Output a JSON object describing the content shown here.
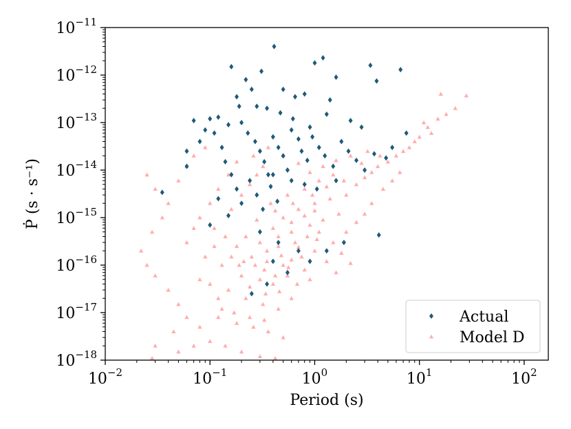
{
  "chart_data": {
    "type": "scatter",
    "title": "",
    "xlabel": "Period (s)",
    "ylabel": "Ṗ (s · s⁻¹)",
    "xscale": "log",
    "yscale": "log",
    "xlim": [
      0.01,
      170
    ],
    "ylim": [
      1e-18,
      1e-11
    ],
    "x_ticks": [
      {
        "value": 0.01,
        "base": "10",
        "exp": "−2"
      },
      {
        "value": 0.1,
        "base": "10",
        "exp": "−1"
      },
      {
        "value": 1,
        "base": "10",
        "exp": "0"
      },
      {
        "value": 10,
        "base": "10",
        "exp": "1"
      },
      {
        "value": 100,
        "base": "10",
        "exp": "2"
      }
    ],
    "y_ticks": [
      {
        "value": 1e-18,
        "base": "10",
        "exp": "−18"
      },
      {
        "value": 1e-17,
        "base": "10",
        "exp": "−17"
      },
      {
        "value": 1e-16,
        "base": "10",
        "exp": "−16"
      },
      {
        "value": 1e-15,
        "base": "10",
        "exp": "−15"
      },
      {
        "value": 1e-14,
        "base": "10",
        "exp": "−14"
      },
      {
        "value": 1e-13,
        "base": "10",
        "exp": "−13"
      },
      {
        "value": 1e-12,
        "base": "10",
        "exp": "−12"
      },
      {
        "value": 1e-11,
        "base": "10",
        "exp": "−11"
      }
    ],
    "legend_position": "lower-right",
    "series": [
      {
        "name": "Actual",
        "marker": "diamond",
        "color": "#1f5a78",
        "points": [
          [
            0.41,
            4e-12
          ],
          [
            1.2,
            2.3e-12
          ],
          [
            3.4,
            1.6e-12
          ],
          [
            6.6,
            1.3e-12
          ],
          [
            0.16,
            1.5e-12
          ],
          [
            1.0,
            1.8e-12
          ],
          [
            1.6,
            9e-13
          ],
          [
            0.31,
            1.2e-12
          ],
          [
            3.9,
            7.5e-13
          ],
          [
            0.22,
            8e-13
          ],
          [
            0.5,
            5e-13
          ],
          [
            0.8,
            4e-13
          ],
          [
            1.4,
            3e-13
          ],
          [
            0.25,
            5e-13
          ],
          [
            0.65,
            3.5e-13
          ],
          [
            0.18,
            3.5e-13
          ],
          [
            0.12,
            1.3e-13
          ],
          [
            0.1,
            1.2e-13
          ],
          [
            0.07,
            1.1e-13
          ],
          [
            0.09,
            7e-14
          ],
          [
            0.06,
            2.5e-14
          ],
          [
            0.06,
            1.2e-14
          ],
          [
            0.08,
            4e-14
          ],
          [
            0.11,
            6e-14
          ],
          [
            0.13,
            3e-14
          ],
          [
            0.14,
            1.5e-14
          ],
          [
            0.16,
            8e-15
          ],
          [
            0.2,
            1e-13
          ],
          [
            0.23,
            6e-14
          ],
          [
            0.27,
            4e-14
          ],
          [
            0.3,
            2.5e-14
          ],
          [
            0.33,
            1.5e-14
          ],
          [
            0.36,
            8e-15
          ],
          [
            0.4,
            5e-14
          ],
          [
            0.45,
            3e-14
          ],
          [
            0.5,
            2e-14
          ],
          [
            0.55,
            1e-14
          ],
          [
            0.6,
            7e-14
          ],
          [
            0.7,
            4.5e-14
          ],
          [
            0.75,
            2.5e-14
          ],
          [
            0.85,
            1.6e-14
          ],
          [
            0.95,
            5e-14
          ],
          [
            1.1,
            3e-14
          ],
          [
            1.25,
            2e-14
          ],
          [
            1.5,
            1.2e-14
          ],
          [
            1.8,
            4e-14
          ],
          [
            2.1,
            2.5e-14
          ],
          [
            2.5,
            1.6e-14
          ],
          [
            3.0,
            1e-14
          ],
          [
            0.035,
            3.4e-15
          ],
          [
            0.1,
            7e-16
          ],
          [
            0.15,
            1.1e-15
          ],
          [
            0.12,
            2.5e-15
          ],
          [
            0.18,
            4e-15
          ],
          [
            0.2,
            2e-15
          ],
          [
            0.24,
            6e-15
          ],
          [
            0.28,
            3e-15
          ],
          [
            0.32,
            1.5e-15
          ],
          [
            0.38,
            4.5e-15
          ],
          [
            0.44,
            2.2e-15
          ],
          [
            4.1,
            4.3e-16
          ],
          [
            7.5,
            6e-14
          ],
          [
            5.5,
            3e-14
          ],
          [
            4.8,
            1.8e-14
          ],
          [
            3.7,
            2.2e-14
          ],
          [
            0.9,
            8e-14
          ],
          [
            0.62,
            1.2e-13
          ],
          [
            0.35,
            2e-13
          ],
          [
            0.28,
            2.2e-13
          ],
          [
            0.47,
            1.6e-13
          ],
          [
            1.3,
            1.5e-13
          ],
          [
            2.2,
            1.1e-13
          ],
          [
            2.8,
            8e-14
          ],
          [
            0.19,
            2.2e-13
          ],
          [
            0.15,
            9e-14
          ],
          [
            0.4,
            8e-15
          ],
          [
            0.6,
            6e-15
          ],
          [
            0.8,
            5e-15
          ],
          [
            1.05,
            4e-15
          ],
          [
            1.6,
            6e-15
          ],
          [
            0.3,
            5e-16
          ],
          [
            0.45,
            3e-16
          ],
          [
            0.7,
            2e-16
          ],
          [
            0.9,
            1.2e-16
          ],
          [
            0.55,
            7e-17
          ],
          [
            0.35,
            4e-17
          ],
          [
            0.25,
            2.5e-17
          ],
          [
            1.3,
            2e-16
          ],
          [
            1.9,
            3e-16
          ],
          [
            0.4,
            1.2e-16
          ]
        ]
      },
      {
        "name": "Model D",
        "marker": "triangle",
        "color": "#ffadad",
        "points": [
          [
            0.5,
            1e-15
          ],
          [
            0.7,
            1.5e-15
          ],
          [
            1.0,
            2e-15
          ],
          [
            1.4,
            2.5e-15
          ],
          [
            2.0,
            3e-15
          ],
          [
            0.4,
            6e-16
          ],
          [
            0.6,
            5e-16
          ],
          [
            0.9,
            7e-16
          ],
          [
            1.2,
            9e-16
          ],
          [
            1.7,
            1.2e-15
          ],
          [
            0.3,
            3e-16
          ],
          [
            0.45,
            2.5e-16
          ],
          [
            0.65,
            3e-16
          ],
          [
            0.85,
            4e-16
          ],
          [
            1.1,
            5e-16
          ],
          [
            0.25,
            1.5e-16
          ],
          [
            0.35,
            1.2e-16
          ],
          [
            0.5,
            1e-16
          ],
          [
            0.75,
            1.5e-16
          ],
          [
            1.0,
            2e-16
          ],
          [
            0.2,
            6e-17
          ],
          [
            0.3,
            5e-17
          ],
          [
            0.4,
            4e-17
          ],
          [
            0.55,
            6e-17
          ],
          [
            0.8,
            8e-17
          ],
          [
            0.15,
            3e-17
          ],
          [
            0.22,
            2e-17
          ],
          [
            0.32,
            1.5e-17
          ],
          [
            0.45,
            1.2e-17
          ],
          [
            0.6,
            2e-17
          ],
          [
            0.12,
            8e-18
          ],
          [
            0.18,
            6e-18
          ],
          [
            0.26,
            5e-18
          ],
          [
            0.36,
            4e-18
          ],
          [
            0.5,
            3e-18
          ],
          [
            0.1,
            2.5e-18
          ],
          [
            0.14,
            2e-18
          ],
          [
            0.2,
            1.5e-18
          ],
          [
            0.3,
            1.2e-18
          ],
          [
            0.42,
            1.1e-18
          ],
          [
            2.5,
            5e-15
          ],
          [
            3.0,
            7e-15
          ],
          [
            3.5,
            9e-15
          ],
          [
            4.0,
            1.2e-14
          ],
          [
            5.0,
            1.5e-14
          ],
          [
            6.0,
            2e-14
          ],
          [
            7.0,
            2.5e-14
          ],
          [
            8.0,
            3e-14
          ],
          [
            9.0,
            4e-14
          ],
          [
            10.0,
            5e-14
          ],
          [
            12.0,
            8e-14
          ],
          [
            15.0,
            1.2e-13
          ],
          [
            18.0,
            1.5e-13
          ],
          [
            28.0,
            3.7e-13
          ],
          [
            16.0,
            4e-13
          ],
          [
            22.0,
            2e-13
          ],
          [
            11.0,
            1e-13
          ],
          [
            13.0,
            6e-14
          ],
          [
            0.025,
            8e-15
          ],
          [
            0.03,
            4e-15
          ],
          [
            0.04,
            2e-15
          ],
          [
            0.035,
            1e-15
          ],
          [
            0.028,
            5e-16
          ],
          [
            0.022,
            2e-16
          ],
          [
            0.025,
            1e-16
          ],
          [
            0.03,
            6e-17
          ],
          [
            0.04,
            3e-17
          ],
          [
            0.05,
            1.5e-17
          ],
          [
            0.06,
            8e-18
          ],
          [
            0.045,
            4e-18
          ],
          [
            0.03,
            2e-18
          ],
          [
            0.028,
            1.1e-18
          ],
          [
            0.05,
            1.5e-18
          ],
          [
            0.07,
            2e-18
          ],
          [
            0.08,
            5e-18
          ],
          [
            0.06,
            3e-16
          ],
          [
            0.07,
            6e-16
          ],
          [
            0.08,
            1e-15
          ],
          [
            0.1,
            2e-15
          ],
          [
            0.12,
            4e-15
          ],
          [
            0.15,
            8e-15
          ],
          [
            0.18,
            1.5e-14
          ],
          [
            0.05,
            6e-15
          ],
          [
            0.06,
            1.2e-14
          ],
          [
            0.07,
            2e-14
          ],
          [
            0.09,
            3e-14
          ],
          [
            0.11,
            6e-16
          ],
          [
            0.14,
            4e-16
          ],
          [
            0.18,
            2.5e-16
          ],
          [
            0.22,
            4e-16
          ],
          [
            1.5,
            3e-16
          ],
          [
            2.0,
            5e-16
          ],
          [
            2.5,
            8e-16
          ],
          [
            3.0,
            1.2e-15
          ],
          [
            1.8,
            1.8e-16
          ],
          [
            1.3,
            1.2e-16
          ],
          [
            1.6,
            7e-17
          ],
          [
            2.2,
            1.1e-16
          ],
          [
            3.5,
            2e-15
          ],
          [
            4.5,
            4e-15
          ],
          [
            5.5,
            6e-15
          ],
          [
            6.5,
            9e-15
          ],
          [
            0.38,
            2e-15
          ],
          [
            0.55,
            3e-15
          ],
          [
            0.8,
            4e-15
          ],
          [
            1.1,
            6e-15
          ],
          [
            1.5,
            8e-15
          ],
          [
            0.28,
            9e-16
          ],
          [
            0.42,
            1.4e-15
          ],
          [
            0.62,
            2e-15
          ],
          [
            0.95,
            3e-15
          ],
          [
            1.3,
            4.5e-15
          ],
          [
            1.9,
            6e-15
          ],
          [
            0.33,
            8e-17
          ],
          [
            0.48,
            1.6e-16
          ],
          [
            0.7,
            2.4e-16
          ],
          [
            1.05,
            3.5e-16
          ],
          [
            0.24,
            3.5e-17
          ],
          [
            0.34,
            2.5e-17
          ],
          [
            0.46,
            2.8e-17
          ],
          [
            0.68,
            4e-17
          ],
          [
            0.9,
            5e-17
          ],
          [
            0.17,
            1e-17
          ],
          [
            0.24,
            8e-18
          ],
          [
            0.33,
            7e-18
          ],
          [
            0.16,
            1.5e-15
          ],
          [
            0.2,
            3e-15
          ],
          [
            0.24,
            5e-15
          ],
          [
            0.28,
            8e-15
          ],
          [
            0.32,
            1.2e-14
          ],
          [
            0.26,
            2e-14
          ],
          [
            0.36,
            3e-14
          ],
          [
            0.5,
            2e-14
          ],
          [
            0.7,
            1.4e-14
          ],
          [
            0.9,
            9e-15
          ],
          [
            1.2,
            1.2e-14
          ],
          [
            1.6,
            1.6e-14
          ],
          [
            2.2,
            2e-14
          ],
          [
            2.8,
            1.4e-14
          ],
          [
            3.2,
            2.5e-14
          ],
          [
            4.2,
            2e-14
          ],
          [
            0.09,
            1.5e-16
          ],
          [
            0.11,
            2.5e-16
          ],
          [
            0.13,
            1e-16
          ],
          [
            0.16,
            1.5e-16
          ],
          [
            0.19,
            1e-16
          ],
          [
            0.08,
            5e-17
          ],
          [
            0.1,
            4e-17
          ],
          [
            0.12,
            2e-17
          ],
          [
            0.13,
            1.2e-17
          ],
          [
            0.6,
            8e-16
          ],
          [
            0.8,
            1.1e-15
          ],
          [
            1.0,
            1.4e-15
          ],
          [
            0.45,
            4e-16
          ],
          [
            0.35,
            2e-16
          ],
          [
            0.27,
            1e-16
          ],
          [
            0.21,
            1.2e-16
          ],
          [
            0.6,
            1.3e-16
          ],
          [
            0.42,
            6e-17
          ],
          [
            0.56,
            9e-17
          ]
        ]
      }
    ]
  }
}
